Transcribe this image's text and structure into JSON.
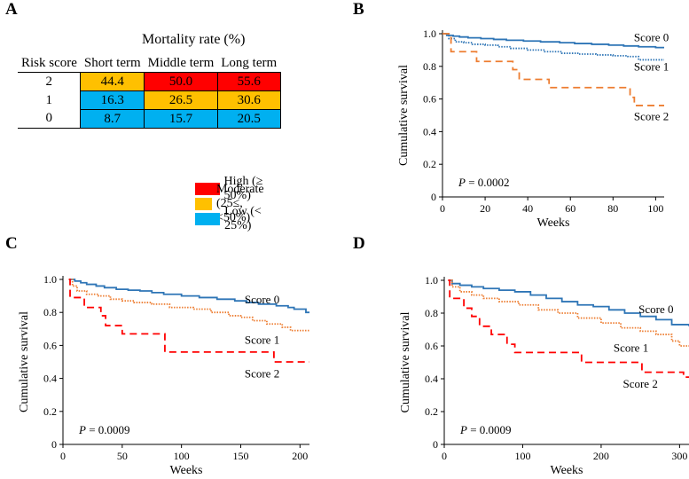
{
  "panel_labels": {
    "a": "A",
    "b": "B",
    "c": "C",
    "d": "D"
  },
  "colors": {
    "high": "#ff0000",
    "moderate": "#ffc000",
    "low": "#00b0f0",
    "score0": "#2e75b6",
    "score1": "#ed7d31",
    "score2": "#ff0000",
    "score2_b": "#ed7d31"
  },
  "table": {
    "title": "Mortality rate (%)",
    "headers": [
      "Risk score",
      "Short term",
      "Middle term",
      "Long term"
    ],
    "rows": [
      {
        "score": "2",
        "values": [
          "44.4",
          "50.0",
          "55.6"
        ],
        "levels": [
          "moderate",
          "high",
          "high"
        ]
      },
      {
        "score": "1",
        "values": [
          "16.3",
          "26.5",
          "30.6"
        ],
        "levels": [
          "low",
          "moderate",
          "moderate"
        ]
      },
      {
        "score": "0",
        "values": [
          "8.7",
          "15.7",
          "20.5"
        ],
        "levels": [
          "low",
          "low",
          "low"
        ]
      }
    ],
    "legend": [
      {
        "key": "high",
        "label": "High (≥ 50%)"
      },
      {
        "key": "moderate",
        "label": "Moderate (25≤, <50%)"
      },
      {
        "key": "low",
        "label": "Low (< 25%)"
      }
    ]
  },
  "chart_data": [
    {
      "panel": "B",
      "type": "line",
      "xlabel": "Weeks",
      "ylabel": "Cumulative survival",
      "xlim": [
        0,
        104
      ],
      "ylim": [
        0,
        1.0
      ],
      "xticks": [
        "0",
        "20",
        "40",
        "60",
        "80",
        "100"
      ],
      "xtick_values": [
        0,
        20,
        40,
        60,
        80,
        100
      ],
      "yticks": [
        "0",
        "0.2",
        "0.4",
        "0.6",
        "0.8",
        "1.0"
      ],
      "ytick_values": [
        0,
        0.2,
        0.4,
        0.6,
        0.8,
        1.0
      ],
      "p_prefix": "P",
      "p_value": " = 0.0002",
      "series": [
        {
          "name": "Score 0",
          "style": "solid",
          "color": "#2e75b6",
          "label_pos": [
            98,
            0.955
          ],
          "points": [
            [
              0,
              1
            ],
            [
              2,
              0.99
            ],
            [
              5,
              0.985
            ],
            [
              8,
              0.98
            ],
            [
              12,
              0.975
            ],
            [
              18,
              0.97
            ],
            [
              24,
              0.965
            ],
            [
              30,
              0.96
            ],
            [
              38,
              0.955
            ],
            [
              46,
              0.95
            ],
            [
              55,
              0.945
            ],
            [
              62,
              0.94
            ],
            [
              70,
              0.935
            ],
            [
              78,
              0.93
            ],
            [
              85,
              0.925
            ],
            [
              92,
              0.92
            ],
            [
              100,
              0.915
            ],
            [
              104,
              0.915
            ]
          ]
        },
        {
          "name": "Score 1",
          "style": "dotted",
          "color": "#2e75b6",
          "label_pos": [
            98,
            0.775
          ],
          "points": [
            [
              0,
              1
            ],
            [
              3,
              0.97
            ],
            [
              6,
              0.95
            ],
            [
              10,
              0.945
            ],
            [
              14,
              0.935
            ],
            [
              20,
              0.93
            ],
            [
              26,
              0.92
            ],
            [
              32,
              0.91
            ],
            [
              40,
              0.9
            ],
            [
              48,
              0.89
            ],
            [
              56,
              0.88
            ],
            [
              64,
              0.875
            ],
            [
              72,
              0.87
            ],
            [
              80,
              0.865
            ],
            [
              87,
              0.86
            ],
            [
              92,
              0.84
            ],
            [
              104,
              0.84
            ]
          ]
        },
        {
          "name": "Score 2",
          "style": "dashed",
          "color": "#ed7d31",
          "label_pos": [
            98,
            0.47
          ],
          "points": [
            [
              0,
              1
            ],
            [
              4,
              0.89
            ],
            [
              16,
              0.83
            ],
            [
              30,
              0.83
            ],
            [
              33,
              0.78
            ],
            [
              36,
              0.72
            ],
            [
              48,
              0.72
            ],
            [
              50,
              0.67
            ],
            [
              84,
              0.67
            ],
            [
              88,
              0.61
            ],
            [
              90,
              0.56
            ],
            [
              104,
              0.56
            ]
          ]
        }
      ]
    },
    {
      "panel": "C",
      "type": "line",
      "xlabel": "Weeks",
      "ylabel": "Cumulative survival",
      "xlim": [
        0,
        208
      ],
      "ylim": [
        0,
        1.0
      ],
      "xticks": [
        "0",
        "50",
        "100",
        "150",
        "200"
      ],
      "xtick_values": [
        0,
        50,
        100,
        150,
        200
      ],
      "yticks": [
        "0",
        "0.2",
        "0.4",
        "0.6",
        "0.8",
        "1.0"
      ],
      "ytick_values": [
        0,
        0.2,
        0.4,
        0.6,
        0.8,
        1.0
      ],
      "p_prefix": "P",
      "p_value": " = 0.0009",
      "series": [
        {
          "name": "Score 0",
          "style": "solid",
          "color": "#2e75b6",
          "label_pos": [
            168,
            0.855
          ],
          "points": [
            [
              5,
              1
            ],
            [
              10,
              0.99
            ],
            [
              15,
              0.98
            ],
            [
              20,
              0.97
            ],
            [
              28,
              0.96
            ],
            [
              35,
              0.95
            ],
            [
              45,
              0.94
            ],
            [
              55,
              0.935
            ],
            [
              65,
              0.93
            ],
            [
              75,
              0.92
            ],
            [
              85,
              0.91
            ],
            [
              100,
              0.9
            ],
            [
              115,
              0.89
            ],
            [
              130,
              0.88
            ],
            [
              145,
              0.87
            ],
            [
              155,
              0.86
            ],
            [
              165,
              0.85
            ],
            [
              180,
              0.84
            ],
            [
              190,
              0.83
            ],
            [
              195,
              0.82
            ],
            [
              205,
              0.8
            ],
            [
              208,
              0.8
            ]
          ]
        },
        {
          "name": "Score 1",
          "style": "dotted",
          "color": "#ed7d31",
          "label_pos": [
            168,
            0.61
          ],
          "points": [
            [
              5,
              1
            ],
            [
              8,
              0.96
            ],
            [
              12,
              0.93
            ],
            [
              20,
              0.91
            ],
            [
              30,
              0.9
            ],
            [
              40,
              0.88
            ],
            [
              50,
              0.87
            ],
            [
              60,
              0.86
            ],
            [
              75,
              0.85
            ],
            [
              90,
              0.83
            ],
            [
              110,
              0.82
            ],
            [
              125,
              0.8
            ],
            [
              140,
              0.78
            ],
            [
              150,
              0.77
            ],
            [
              160,
              0.75
            ],
            [
              172,
              0.73
            ],
            [
              185,
              0.71
            ],
            [
              192,
              0.69
            ],
            [
              208,
              0.69
            ]
          ]
        },
        {
          "name": "Score 2",
          "style": "dashed",
          "color": "#ff0000",
          "label_pos": [
            168,
            0.405
          ],
          "points": [
            [
              5,
              1
            ],
            [
              6,
              0.89
            ],
            [
              18,
              0.83
            ],
            [
              30,
              0.83
            ],
            [
              32,
              0.78
            ],
            [
              36,
              0.72
            ],
            [
              48,
              0.72
            ],
            [
              50,
              0.67
            ],
            [
              84,
              0.67
            ],
            [
              86,
              0.56
            ],
            [
              175,
              0.56
            ],
            [
              178,
              0.5
            ],
            [
              208,
              0.5
            ]
          ]
        }
      ]
    },
    {
      "panel": "D",
      "type": "line",
      "xlabel": "Weeks",
      "ylabel": "Cumulative survival",
      "xlim": [
        0,
        312
      ],
      "ylim": [
        0,
        1.0
      ],
      "xticks": [
        "0",
        "100",
        "200",
        "300"
      ],
      "xtick_values": [
        0,
        100,
        200,
        300
      ],
      "yticks": [
        "0",
        "0.2",
        "0.4",
        "0.6",
        "0.8",
        "1.0"
      ],
      "ytick_values": [
        0,
        0.2,
        0.4,
        0.6,
        0.8,
        1.0
      ],
      "p_prefix": "P",
      "p_value": " = 0.0009",
      "series": [
        {
          "name": "Score 0",
          "style": "solid",
          "color": "#2e75b6",
          "label_pos": [
            270,
            0.8
          ],
          "points": [
            [
              5,
              1
            ],
            [
              10,
              0.98
            ],
            [
              20,
              0.97
            ],
            [
              35,
              0.96
            ],
            [
              50,
              0.95
            ],
            [
              70,
              0.94
            ],
            [
              90,
              0.93
            ],
            [
              110,
              0.91
            ],
            [
              130,
              0.89
            ],
            [
              150,
              0.87
            ],
            [
              170,
              0.85
            ],
            [
              190,
              0.84
            ],
            [
              210,
              0.82
            ],
            [
              230,
              0.8
            ],
            [
              250,
              0.78
            ],
            [
              270,
              0.76
            ],
            [
              290,
              0.73
            ],
            [
              312,
              0.72
            ]
          ]
        },
        {
          "name": "Score 1",
          "style": "dotted",
          "color": "#ed7d31",
          "label_pos": [
            238,
            0.565
          ],
          "points": [
            [
              5,
              1
            ],
            [
              10,
              0.96
            ],
            [
              20,
              0.93
            ],
            [
              35,
              0.91
            ],
            [
              50,
              0.89
            ],
            [
              70,
              0.87
            ],
            [
              95,
              0.85
            ],
            [
              120,
              0.82
            ],
            [
              145,
              0.8
            ],
            [
              170,
              0.77
            ],
            [
              200,
              0.74
            ],
            [
              225,
              0.71
            ],
            [
              250,
              0.69
            ],
            [
              270,
              0.67
            ],
            [
              290,
              0.63
            ],
            [
              300,
              0.6
            ],
            [
              312,
              0.6
            ]
          ]
        },
        {
          "name": "Score 2",
          "style": "dashed",
          "color": "#ff0000",
          "label_pos": [
            250,
            0.345
          ],
          "points": [
            [
              5,
              1
            ],
            [
              7,
              0.89
            ],
            [
              25,
              0.83
            ],
            [
              35,
              0.78
            ],
            [
              45,
              0.72
            ],
            [
              60,
              0.67
            ],
            [
              80,
              0.61
            ],
            [
              90,
              0.56
            ],
            [
              170,
              0.56
            ],
            [
              175,
              0.5
            ],
            [
              250,
              0.5
            ],
            [
              252,
              0.44
            ],
            [
              300,
              0.44
            ],
            [
              305,
              0.41
            ],
            [
              312,
              0.41
            ]
          ]
        }
      ]
    }
  ]
}
